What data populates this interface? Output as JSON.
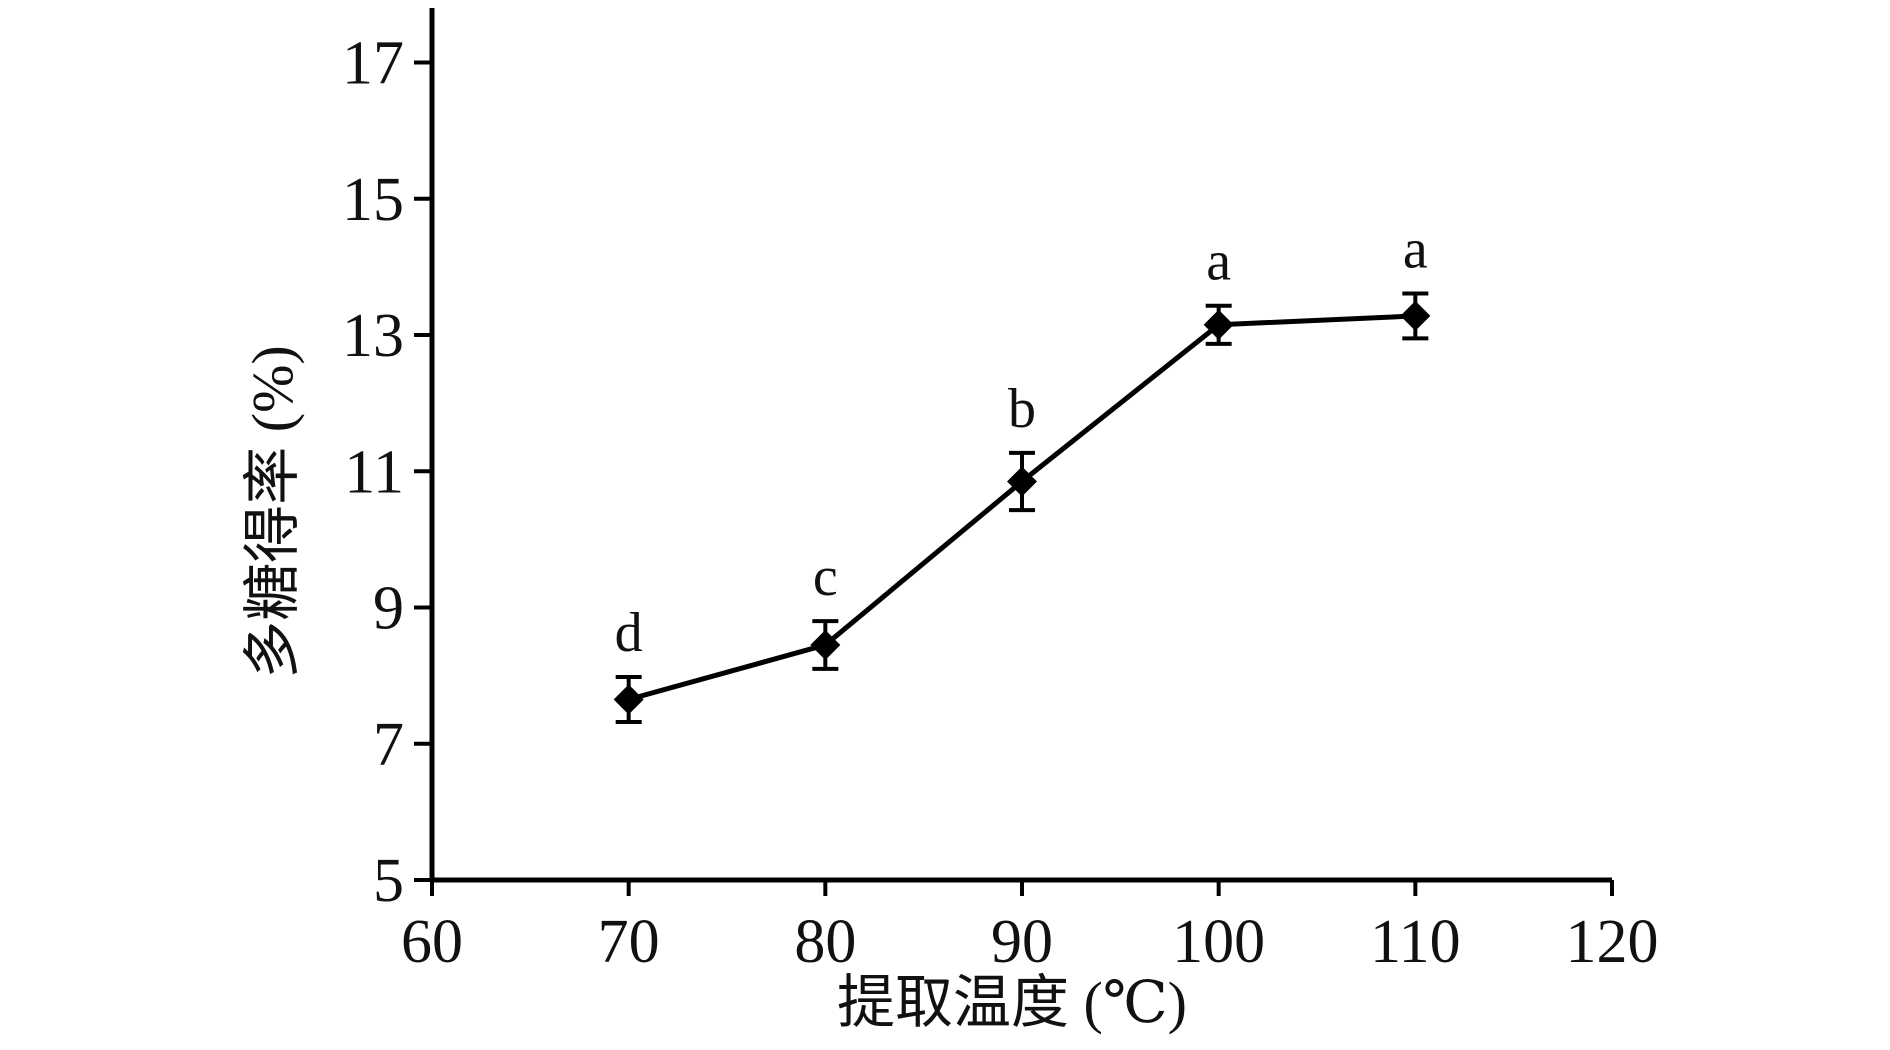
{
  "chart_data": {
    "type": "line",
    "title": "",
    "xlabel": "提取温度 (℃)",
    "ylabel": "多糖得率 (%)",
    "xlim": [
      60,
      120
    ],
    "ylim": [
      5,
      17.8
    ],
    "x_ticks": [
      60,
      70,
      80,
      90,
      100,
      110,
      120
    ],
    "y_ticks": [
      5,
      7,
      9,
      11,
      13,
      15,
      17
    ],
    "grid": false,
    "legend": "none",
    "marker": "diamond",
    "color": "#000000",
    "series": [
      {
        "x": [
          70,
          80,
          90,
          100,
          110
        ],
        "y": [
          7.65,
          8.45,
          10.85,
          13.15,
          13.28
        ],
        "error": [
          0.33,
          0.35,
          0.42,
          0.28,
          0.33
        ],
        "significance_labels": [
          "d",
          "c",
          "b",
          "a",
          "a"
        ]
      }
    ]
  }
}
